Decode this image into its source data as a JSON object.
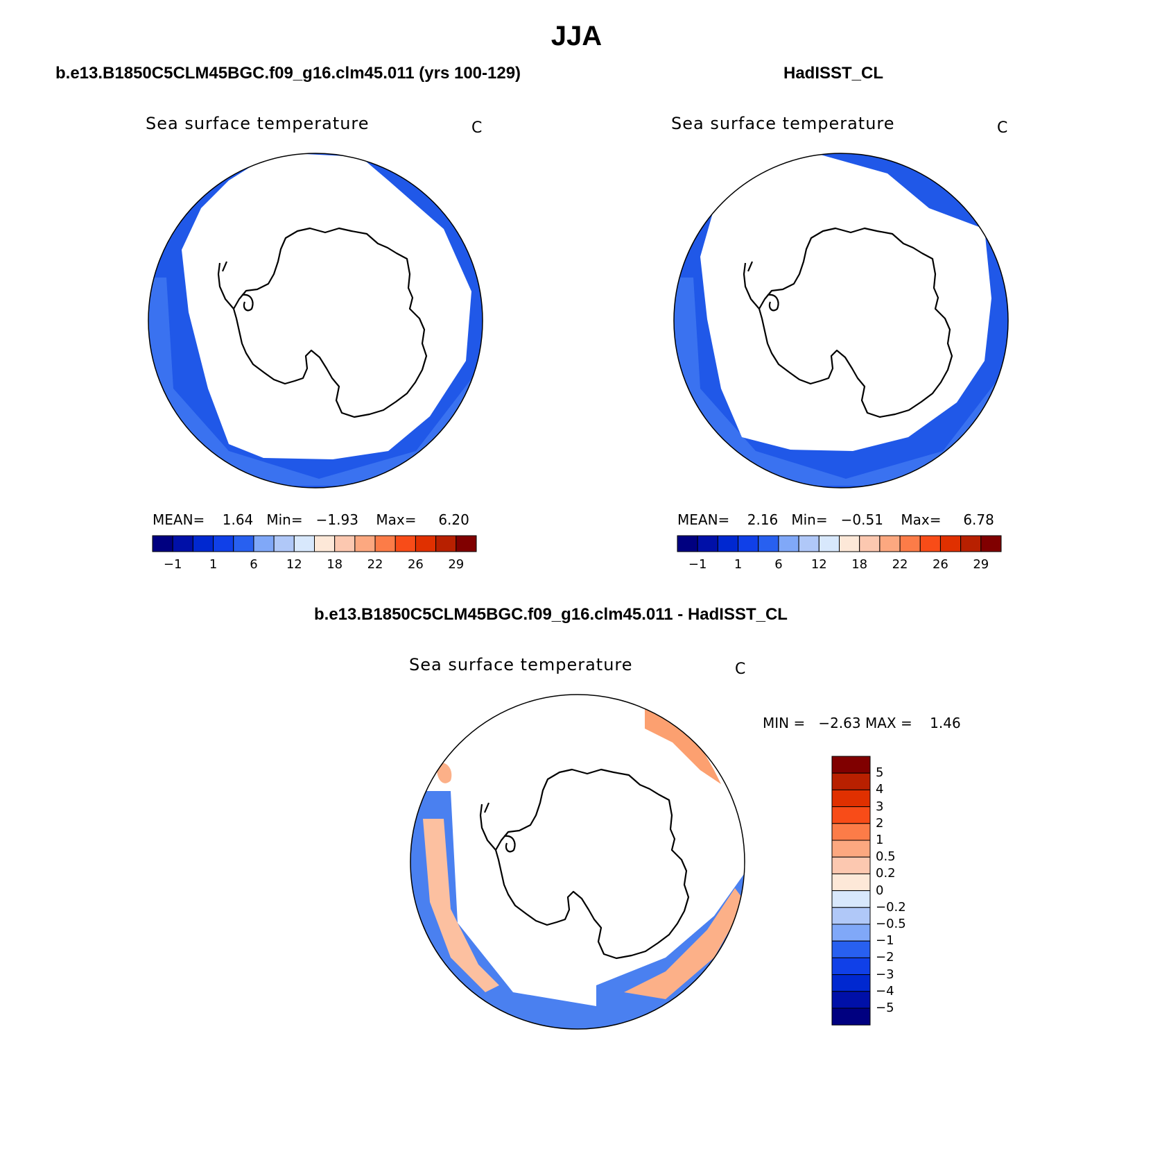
{
  "figure": {
    "title": "JJA",
    "diff_title": "b.e13.B1850C5CLM45BGC.f09_g16.clm45.011 - HadISST_CL"
  },
  "panels": [
    {
      "id": "model",
      "header": "b.e13.B1850C5CLM45BGC.f09_g16.clm45.011 (yrs 100-129)",
      "variable": "Sea surface temperature",
      "units": "C",
      "stats": {
        "mean_label": "MEAN=",
        "mean": "1.64",
        "min_label": "Min=",
        "min": "−1.93",
        "max_label": "Max=",
        "max": "6.20"
      }
    },
    {
      "id": "obs",
      "header": "HadISST_CL",
      "variable": "Sea surface temperature",
      "units": "C",
      "stats": {
        "mean_label": "MEAN=",
        "mean": "2.16",
        "min_label": "Min=",
        "min": "−0.51",
        "max_label": "Max=",
        "max": "6.78"
      }
    },
    {
      "id": "diff",
      "variable": "Sea surface temperature",
      "units": "C",
      "stats": {
        "min_label": "MIN =",
        "min": "−2.63",
        "max_label": "MAX =",
        "max": "1.46"
      }
    }
  ],
  "colorbars": {
    "field": {
      "colors": [
        "#000080",
        "#0010a8",
        "#0028d0",
        "#1040e8",
        "#2860f0",
        "#80a8f8",
        "#b0c8f8",
        "#d8e8fc",
        "#fde8d8",
        "#fcc8b0",
        "#fca880",
        "#fc7c48",
        "#f84c18",
        "#e03000",
        "#b82000",
        "#800000"
      ],
      "tick_labels": [
        "−1",
        "1",
        "6",
        "12",
        "18",
        "22",
        "26",
        "29"
      ]
    },
    "diff": {
      "colors": [
        "#800000",
        "#b82000",
        "#e03000",
        "#f84c18",
        "#fc7c48",
        "#fca880",
        "#fcc8b0",
        "#fde8d8",
        "#d8e8fc",
        "#b0c8f8",
        "#80a8f8",
        "#2860f0",
        "#1040e8",
        "#0028d0",
        "#0010a8",
        "#000080"
      ],
      "tick_labels": [
        "5",
        "4",
        "3",
        "2",
        "1",
        "0.5",
        "0.2",
        "0",
        "−0.2",
        "−0.5",
        "−1",
        "−2",
        "−3",
        "−4",
        "−5"
      ]
    }
  }
}
